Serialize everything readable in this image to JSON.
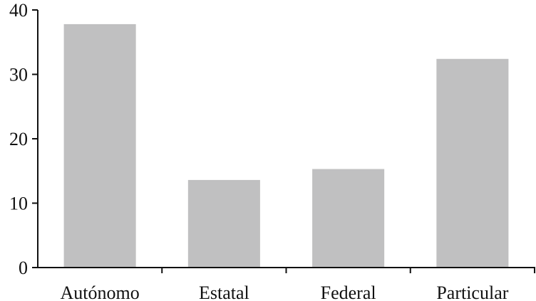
{
  "chart_data": {
    "type": "bar",
    "categories": [
      "Autónomo",
      "Estatal",
      "Federal",
      "Particular"
    ],
    "values": [
      37.8,
      13.6,
      15.3,
      32.4
    ],
    "color": "#c0c0c1",
    "ylim": [
      0,
      40
    ],
    "yticks": [
      0,
      10,
      20,
      30,
      40
    ],
    "grid": false
  }
}
